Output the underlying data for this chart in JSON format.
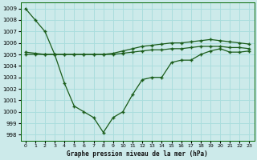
{
  "xlabel": "Graphe pression niveau de la mer (hPa)",
  "xlim": [
    -0.5,
    23.5
  ],
  "ylim": [
    997.5,
    1009.5
  ],
  "yticks": [
    998,
    999,
    1000,
    1001,
    1002,
    1003,
    1004,
    1005,
    1006,
    1007,
    1008,
    1009
  ],
  "xticks": [
    0,
    1,
    2,
    3,
    4,
    5,
    6,
    7,
    8,
    9,
    10,
    11,
    12,
    13,
    14,
    15,
    16,
    17,
    18,
    19,
    20,
    21,
    22,
    23
  ],
  "bg_color": "#cceaea",
  "grid_color": "#aadddd",
  "line_color": "#1a5c1a",
  "line1": [
    1009.0,
    1008.0,
    1007.0,
    1005.0,
    1002.5,
    1000.5,
    1000.0,
    999.5,
    998.2,
    999.5,
    1000.0,
    1001.5,
    1002.8,
    1003.0,
    1003.0,
    1004.3,
    1004.5,
    1004.5,
    1005.0,
    1005.3,
    1005.5,
    1005.2,
    1005.2,
    1005.3
  ],
  "line2": [
    1005.0,
    1005.0,
    1005.0,
    1005.0,
    1005.0,
    1005.0,
    1005.0,
    1005.0,
    1005.0,
    1005.0,
    1005.1,
    1005.2,
    1005.3,
    1005.4,
    1005.4,
    1005.5,
    1005.5,
    1005.6,
    1005.7,
    1005.7,
    1005.7,
    1005.6,
    1005.6,
    1005.5
  ],
  "line3": [
    1005.2,
    1005.1,
    1005.0,
    1005.0,
    1005.0,
    1005.0,
    1005.0,
    1005.0,
    1005.0,
    1005.1,
    1005.3,
    1005.5,
    1005.7,
    1005.8,
    1005.9,
    1006.0,
    1006.0,
    1006.1,
    1006.2,
    1006.3,
    1006.2,
    1006.1,
    1006.0,
    1005.9
  ]
}
